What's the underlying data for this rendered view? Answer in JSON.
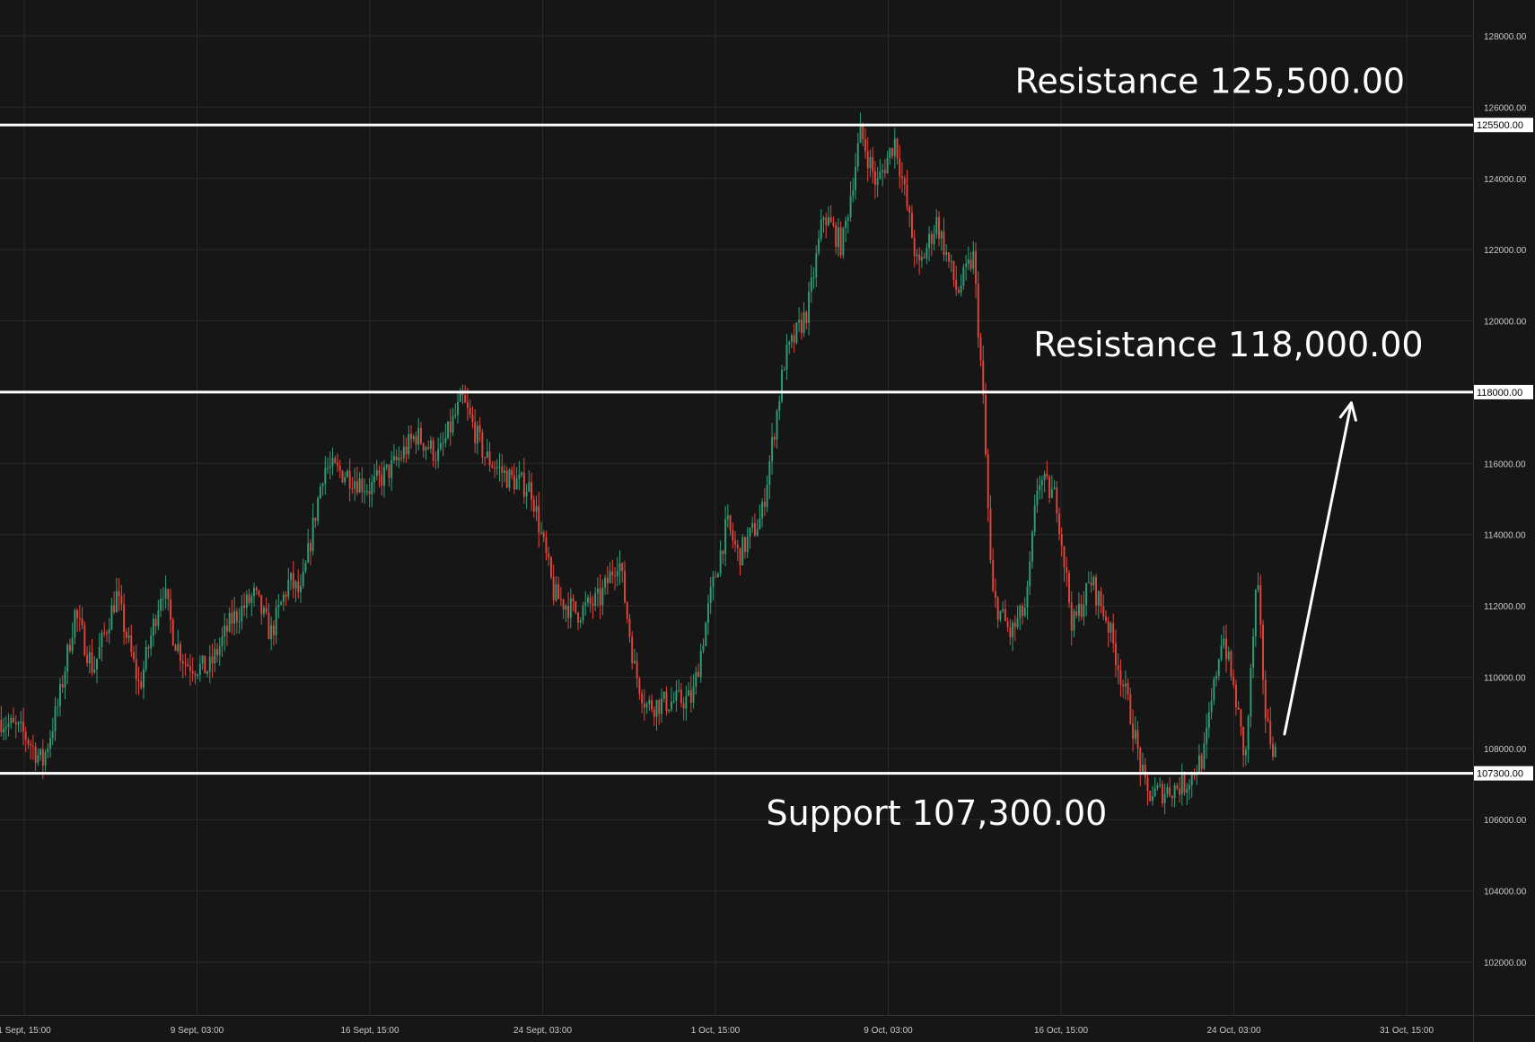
{
  "chart_data": {
    "type": "candlestick",
    "ylim": [
      100000,
      129000
    ],
    "y_ticks": [
      "102000.00",
      "104000.00",
      "106000.00",
      "108000.00",
      "110000.00",
      "112000.00",
      "114000.00",
      "116000.00",
      "120000.00",
      "122000.00",
      "124000.00",
      "126000.00",
      "128000.00"
    ],
    "x_ticks": [
      "1 Sept, 15:00",
      "9 Sept, 03:00",
      "16 Sept, 15:00",
      "24 Sept, 03:00",
      "1 Oct, 15:00",
      "9 Oct, 03:00",
      "16 Oct, 15:00",
      "24 Oct, 03:00",
      "31 Oct, 15:00"
    ],
    "x_tick_days": [
      0,
      7.5,
      15,
      22.5,
      30,
      37.5,
      45,
      52.5,
      60
    ],
    "x_range_days": [
      -1,
      62
    ],
    "price_path": [
      [
        -1,
        108800
      ],
      [
        0,
        108400
      ],
      [
        0.8,
        107600
      ],
      [
        1.5,
        109300
      ],
      [
        2.2,
        111800
      ],
      [
        3.0,
        110200
      ],
      [
        4.0,
        112300
      ],
      [
        5.0,
        109700
      ],
      [
        6.0,
        112600
      ],
      [
        6.5,
        111100
      ],
      [
        7.0,
        110400
      ],
      [
        8.0,
        110200
      ],
      [
        9.0,
        111600
      ],
      [
        10.0,
        112300
      ],
      [
        10.7,
        111200
      ],
      [
        11.5,
        112700
      ],
      [
        12.0,
        112300
      ],
      [
        13.0,
        115900
      ],
      [
        14.0,
        115700
      ],
      [
        15.0,
        115300
      ],
      [
        16.0,
        115900
      ],
      [
        17.0,
        116800
      ],
      [
        18.0,
        116200
      ],
      [
        19.0,
        117800
      ],
      [
        20.0,
        116200
      ],
      [
        21.0,
        115600
      ],
      [
        22.0,
        115300
      ],
      [
        23.0,
        112300
      ],
      [
        24.0,
        111800
      ],
      [
        25.0,
        112200
      ],
      [
        25.8,
        113400
      ],
      [
        26.5,
        110200
      ],
      [
        27.0,
        109200
      ],
      [
        28.0,
        109300
      ],
      [
        29.0,
        109400
      ],
      [
        29.8,
        112300
      ],
      [
        30.5,
        114300
      ],
      [
        31.0,
        113400
      ],
      [
        32.0,
        114500
      ],
      [
        33.0,
        118900
      ],
      [
        34.0,
        120300
      ],
      [
        34.7,
        123000
      ],
      [
        35.5,
        122100
      ],
      [
        36.3,
        125300
      ],
      [
        37.0,
        123800
      ],
      [
        37.8,
        125100
      ],
      [
        38.8,
        121400
      ],
      [
        39.6,
        122800
      ],
      [
        40.5,
        120800
      ],
      [
        41.2,
        121800
      ],
      [
        41.6,
        118000
      ],
      [
        42.0,
        112300
      ],
      [
        42.8,
        111200
      ],
      [
        43.5,
        112000
      ],
      [
        44.0,
        115600
      ],
      [
        44.8,
        115000
      ],
      [
        45.5,
        111400
      ],
      [
        46.3,
        112700
      ],
      [
        47.0,
        111600
      ],
      [
        48.0,
        109000
      ],
      [
        48.7,
        106700
      ],
      [
        49.5,
        106800
      ],
      [
        50.4,
        107000
      ],
      [
        51.2,
        107800
      ],
      [
        52.0,
        111300
      ],
      [
        52.6,
        109300
      ],
      [
        53.0,
        107600
      ],
      [
        53.5,
        112800
      ],
      [
        53.9,
        108700
      ],
      [
        54.3,
        107900
      ]
    ],
    "candle_count": 520,
    "levels": [
      {
        "value": 125500,
        "tag": "125500.00"
      },
      {
        "value": 118000,
        "tag": "118000.00"
      },
      {
        "value": 107300,
        "tag": "107300.00"
      }
    ],
    "annotations": [
      {
        "text": "Resistance 125,500.00",
        "day": 43.0,
        "price": 126400
      },
      {
        "text": "Resistance 118,000.00",
        "day": 43.8,
        "price": 119000
      },
      {
        "text": "Support 107,300.00",
        "day": 32.2,
        "price": 105850
      }
    ],
    "arrow": {
      "from_day": 54.7,
      "from_price": 108400,
      "to_day": 57.6,
      "to_price": 117700
    },
    "up_color": "#2e9e76",
    "down_color": "#e2453c",
    "background": "#161616",
    "grid": true
  }
}
